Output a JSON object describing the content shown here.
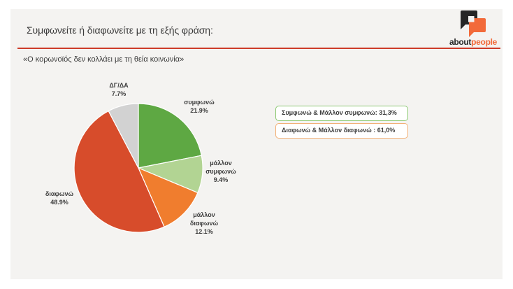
{
  "page": {
    "background": "#ffffff",
    "card_background": "#f4f3f1"
  },
  "header": {
    "title": "Συμφωνείτε ή διαφωνείτε με τη εξής φράση:",
    "divider_color": "#cd3b28"
  },
  "brand": {
    "icon": "speech-bubbles-logo",
    "word_black": "about",
    "word_orange": "people",
    "icon_black": "#262626",
    "icon_orange": "#f26a3a"
  },
  "question": "«Ο κορωνοϊός δεν κολλάει με τη θεία κοινωνία»",
  "chart_data": {
    "type": "pie",
    "title": "Συμφωνείτε ή διαφωνείτε με τη εξής φράση:",
    "subtitle": "«Ο κορωνοϊός δεν κολλάει με τη θεία κοινωνία»",
    "start_angle_deg": 0,
    "direction": "clockwise",
    "radius_px": 92,
    "separator_color": "#ffffff",
    "slices": [
      {
        "label": "συμφωνώ",
        "value": 21.9,
        "value_label": "21.9%",
        "color": "#5ea843"
      },
      {
        "label": "μάλλον συμφωνώ",
        "value": 9.4,
        "value_label": "9.4%",
        "color": "#b2d493"
      },
      {
        "label": "μάλλον διαφωνώ",
        "value": 12.1,
        "value_label": "12.1%",
        "color": "#f07d2e"
      },
      {
        "label": "διαφωνώ",
        "value": 48.9,
        "value_label": "48.9%",
        "color": "#d74c2b"
      },
      {
        "label": "ΔΓ/ΔΑ",
        "value": 7.7,
        "value_label": "7.7%",
        "color": "#d2d2d2"
      }
    ],
    "annotations": [
      {
        "text": "Συμφωνώ & Μάλλον συμφωνώ: 31,3%",
        "border_color": "#8dc973"
      },
      {
        "text": "Διαφωνώ & Μάλλον διαφωνώ : 61,0%",
        "border_color": "#f2b077"
      }
    ]
  }
}
